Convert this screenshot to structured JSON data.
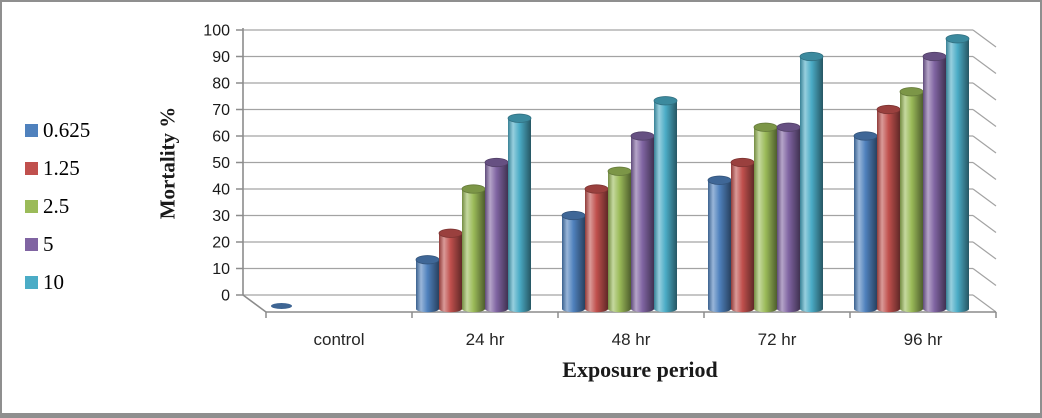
{
  "chart_data": {
    "type": "bar",
    "subtype": "3d-cylinder",
    "title": "",
    "xlabel": "Exposure period",
    "ylabel": "Mortality %",
    "categories": [
      "control",
      "24 hr",
      "48 hr",
      "72 hr",
      "96 hr"
    ],
    "series": [
      {
        "name": "0.625",
        "color": "#4F81BD",
        "values": [
          0,
          13.3,
          30,
          43.3,
          60
        ]
      },
      {
        "name": "1.25",
        "color": "#C0504D",
        "values": [
          null,
          23.3,
          40,
          50,
          70
        ]
      },
      {
        "name": "2.5",
        "color": "#9BBB59",
        "values": [
          null,
          40,
          46.7,
          63.3,
          76.7
        ]
      },
      {
        "name": "5",
        "color": "#8064A2",
        "values": [
          null,
          50,
          60,
          63.3,
          90
        ]
      },
      {
        "name": "10",
        "color": "#4BACC6",
        "values": [
          null,
          66.7,
          73.3,
          90,
          96.7
        ]
      }
    ],
    "ylim": [
      0,
      100
    ],
    "y_step": 10,
    "grid": true,
    "legend_position": "left",
    "grid_color": "#a3a3a3",
    "axis_color": "#8c8c8c"
  }
}
